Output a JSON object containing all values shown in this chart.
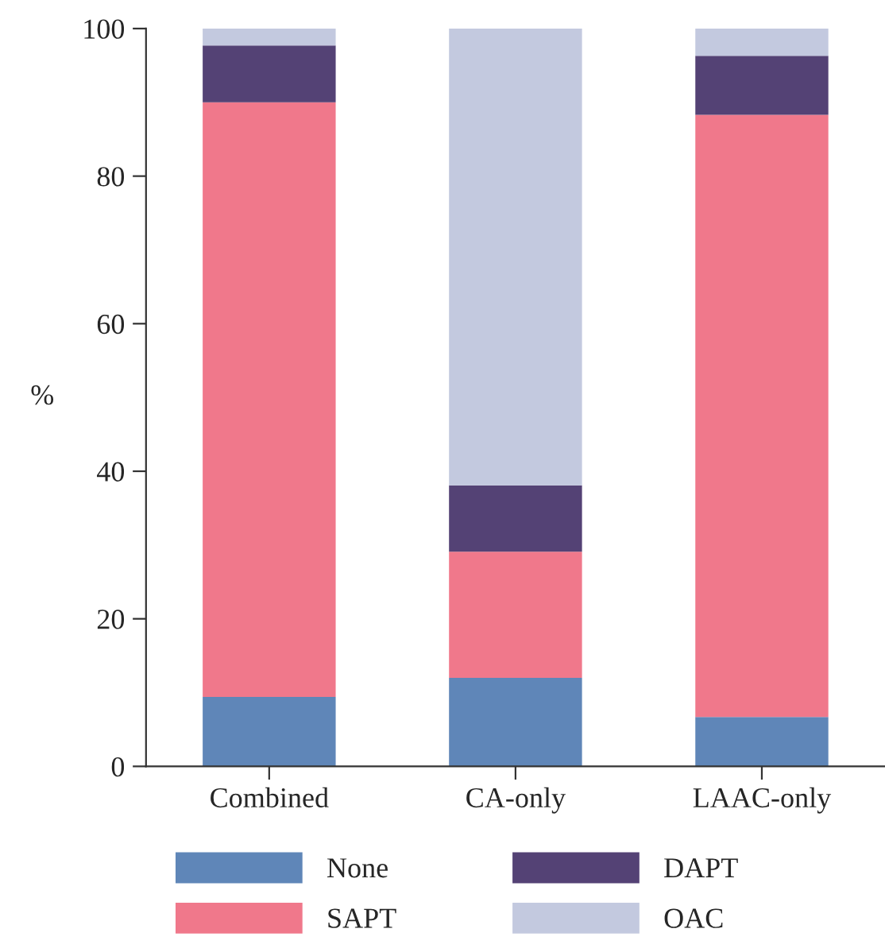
{
  "chart_data": {
    "type": "bar",
    "stacked": true,
    "ylabel": "%",
    "categories": [
      "Combined",
      "CA-only",
      "LAAC-only"
    ],
    "series": [
      {
        "name": "None",
        "color": "#5f86b8",
        "values": [
          9.4,
          12.0,
          6.7
        ]
      },
      {
        "name": "SAPT",
        "color": "#f0788b",
        "values": [
          80.6,
          17.1,
          81.6
        ]
      },
      {
        "name": "DAPT",
        "color": "#544275",
        "values": [
          7.7,
          9.0,
          8.0
        ]
      },
      {
        "name": "OAC",
        "color": "#c3c9df",
        "values": [
          2.3,
          61.9,
          3.7
        ]
      }
    ],
    "ylim": [
      0,
      100
    ],
    "yticks": [
      0,
      20,
      40,
      60,
      80,
      100
    ],
    "grid": false,
    "legend": "bottom"
  }
}
